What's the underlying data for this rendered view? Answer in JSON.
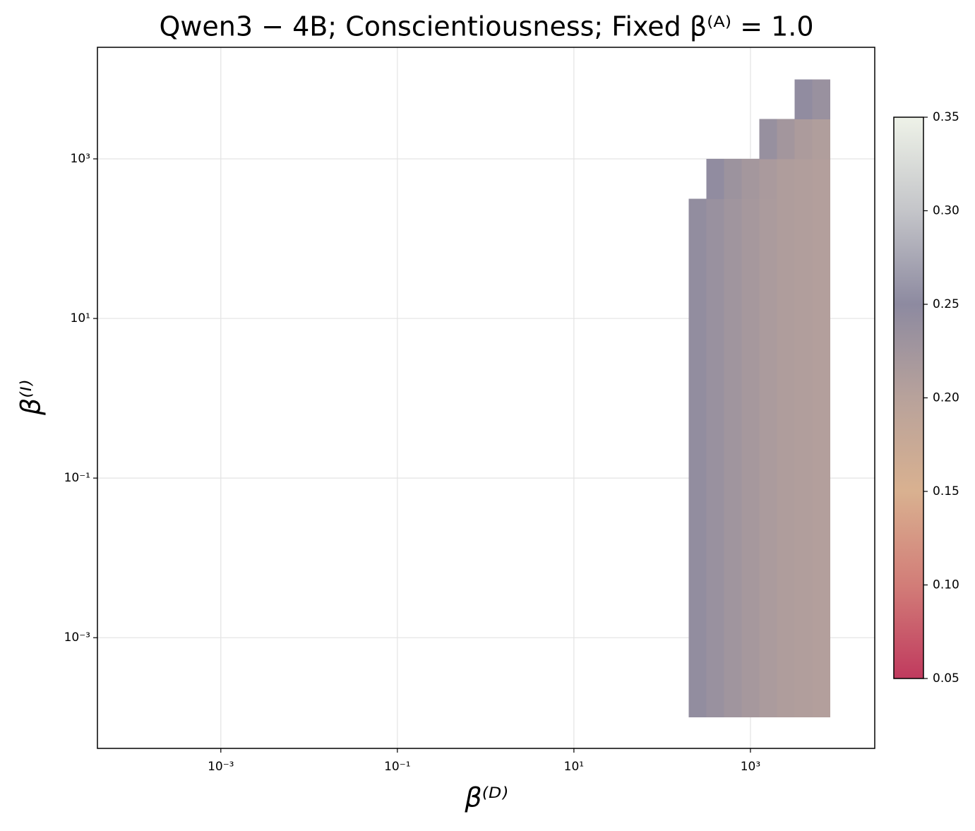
{
  "chart_data": {
    "type": "heatmap",
    "title": "Qwen3 − 4B;  Conscientiousness;  Fixed β⁽ᴬ⁾ = 1.0",
    "xlabel": "β⁽ᴰ⁾",
    "ylabel": "β⁽ᴵ⁾",
    "xscale": "log",
    "yscale": "log",
    "grid": true,
    "xlim": [
      4e-05,
      25600
    ],
    "ylim": [
      4.1e-05,
      25000
    ],
    "xticks": [
      {
        "value": 0.001,
        "label": "10⁻³"
      },
      {
        "value": 0.1,
        "label": "10⁻¹"
      },
      {
        "value": 10,
        "label": "10¹"
      },
      {
        "value": 1000,
        "label": "10³"
      }
    ],
    "yticks": [
      {
        "value": 0.001,
        "label": "10⁻³"
      },
      {
        "value": 0.1,
        "label": "10⁻¹"
      },
      {
        "value": 10,
        "label": "10¹"
      },
      {
        "value": 1000,
        "label": "10³"
      }
    ],
    "x": [
      251,
      398,
      631,
      1000,
      1585,
      2512,
      3981,
      6310
    ],
    "y": [
      0.00018,
      0.00056,
      0.0018,
      0.0056,
      0.018,
      0.056,
      0.18,
      0.56,
      1.8,
      5.6,
      18,
      56,
      180,
      560,
      1800,
      5600
    ],
    "z": [
      [
        0.244,
        0.236,
        0.228,
        0.221,
        0.215,
        0.211,
        0.208,
        0.206
      ],
      [
        0.244,
        0.236,
        0.228,
        0.221,
        0.215,
        0.211,
        0.208,
        0.206
      ],
      [
        0.244,
        0.236,
        0.228,
        0.221,
        0.215,
        0.211,
        0.208,
        0.206
      ],
      [
        0.244,
        0.236,
        0.228,
        0.221,
        0.215,
        0.211,
        0.208,
        0.206
      ],
      [
        0.244,
        0.236,
        0.228,
        0.221,
        0.215,
        0.211,
        0.208,
        0.206
      ],
      [
        0.244,
        0.236,
        0.228,
        0.221,
        0.215,
        0.211,
        0.208,
        0.206
      ],
      [
        0.244,
        0.236,
        0.228,
        0.221,
        0.215,
        0.211,
        0.208,
        0.206
      ],
      [
        0.244,
        0.236,
        0.228,
        0.221,
        0.215,
        0.211,
        0.208,
        0.206
      ],
      [
        0.244,
        0.236,
        0.228,
        0.221,
        0.215,
        0.211,
        0.208,
        0.206
      ],
      [
        0.244,
        0.236,
        0.228,
        0.221,
        0.215,
        0.211,
        0.208,
        0.206
      ],
      [
        0.244,
        0.236,
        0.228,
        0.221,
        0.215,
        0.211,
        0.208,
        0.206
      ],
      [
        0.244,
        0.236,
        0.228,
        0.221,
        0.215,
        0.211,
        0.208,
        0.206
      ],
      [
        0.244,
        0.236,
        0.228,
        0.221,
        0.215,
        0.211,
        0.208,
        0.206
      ],
      [
        null,
        0.245,
        0.232,
        0.223,
        0.216,
        0.211,
        0.208,
        0.206
      ],
      [
        null,
        null,
        null,
        null,
        0.238,
        0.224,
        0.214,
        0.209
      ],
      [
        null,
        null,
        null,
        null,
        null,
        null,
        0.245,
        0.236
      ]
    ],
    "clim": [
      0.05,
      0.35
    ],
    "colorbar_ticks": [
      0.05,
      0.1,
      0.15,
      0.2,
      0.25,
      0.3,
      0.35
    ],
    "colorbar_tick_labels": [
      "0.05",
      "0.10",
      "0.15",
      "0.20",
      "0.25",
      "0.30",
      "0.35"
    ],
    "colormap": [
      "#c03a5e",
      "#d27d78",
      "#d9b190",
      "#b8a29b",
      "#8d8aa0",
      "#c4c5c9",
      "#eef2e8"
    ]
  }
}
